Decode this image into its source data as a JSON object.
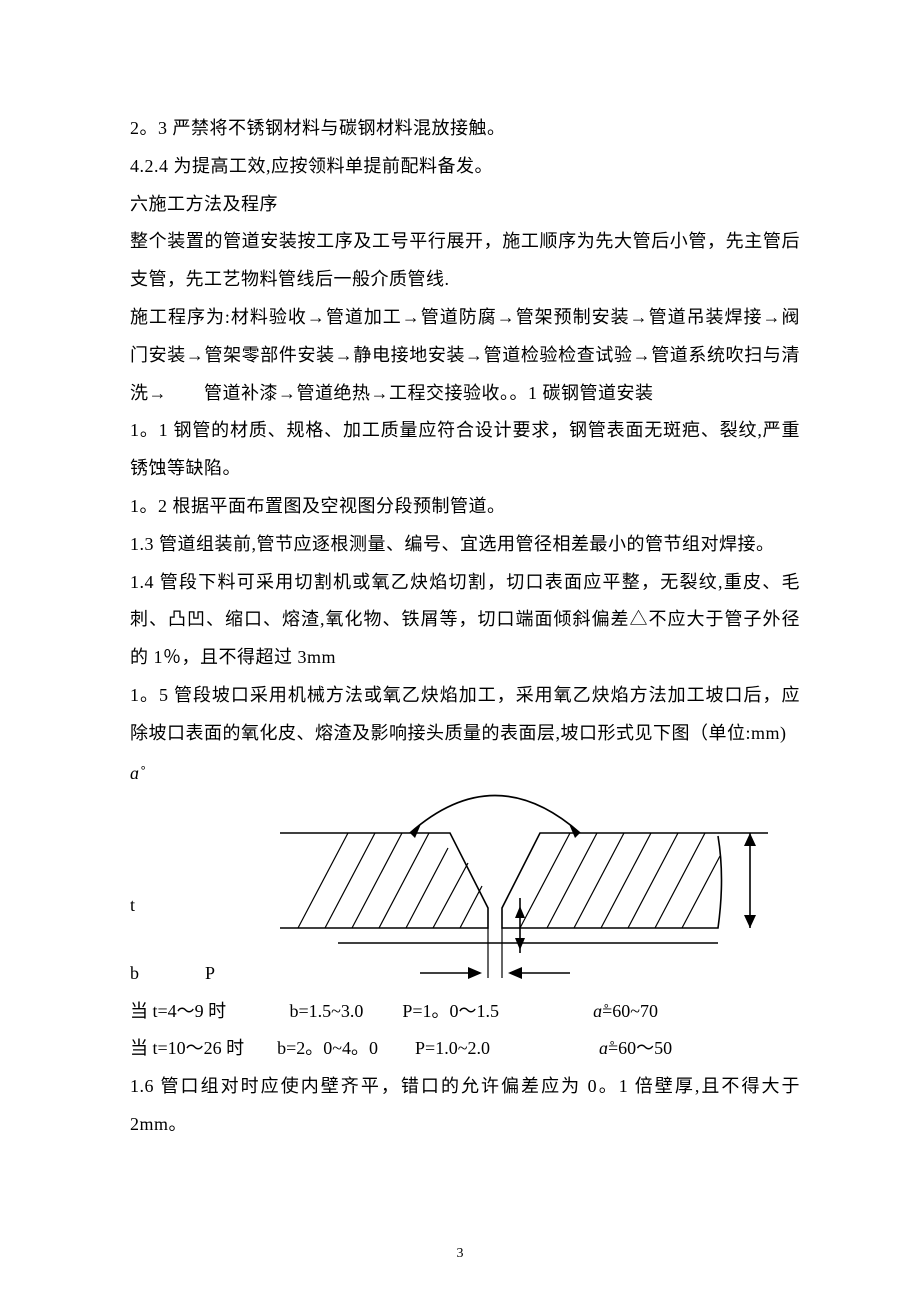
{
  "paragraphs": {
    "p1": "2。3 严禁将不锈钢材料与碳钢材料混放接触。",
    "p2": "4.2.4 为提高工效,应按领料单提前配料备发。",
    "p3": "六施工方法及程序",
    "p4": "整个装置的管道安装按工序及工号平行展开，施工顺序为先大管后小管，先主管后支管，先工艺物料管线后一般介质管线.",
    "p5": "施工程序为:材料验收→管道加工→管道防腐→管架预制安装→管道吊装焊接→阀门安装→管架零部件安装→静电接地安装→管道检验检查试验→管道系统吹扫与清洗→　　管道补漆→管道绝热→工程交接验收。。1 碳钢管道安装",
    "p6": "1。1 钢管的材质、规格、加工质量应符合设计要求，钢管表面无斑疤、裂纹,严重锈蚀等缺陷。",
    "p7": "1。2 根据平面布置图及空视图分段预制管道。",
    "p8": "1.3 管道组装前,管节应逐根测量、编号、宜选用管径相差最小的管节组对焊接。",
    "p9": "1.4 管段下料可采用切割机或氧乙炔焰切割，切口表面应平整，无裂纹,重皮、毛刺、凸凹、缩口、熔渣,氧化物、铁屑等，切口端面倾斜偏差△不应大于管子外径的 1％，且不得超过 3mm",
    "p10": "1。5 管段坡口采用机械方法或氧乙炔焰加工，采用氧乙炔焰方法加工坡口后，应除坡口表面的氧化皮、熔渣及影响接头质量的表面层,坡口形式见下图（单位:mm)"
  },
  "diagram": {
    "alpha_symbol": "ɑ̊",
    "t_label": "t",
    "b_label": "b",
    "p_label": "P",
    "stroke_color": "#000000",
    "stroke_width": 1.6,
    "hatch_width": 1.2
  },
  "conditions": {
    "row1": {
      "c1": "当 t=4～9 时",
      "c2": "b=1.5~3.0",
      "c3": "P=1。0～1.5",
      "c4_pre": "ɑ̊",
      "c4": " =60~70",
      "w1": 155,
      "w2": 125,
      "w3": 170,
      "w4": 0
    },
    "row2": {
      "c1": "当 t=10～26 时",
      "c2": "b=2。0~4。0",
      "c3": "P=1.0~2.0",
      "c4_pre": "ɑ̊",
      "c4": " =60～50",
      "w1": 155,
      "w2": 135,
      "w3": 170,
      "w4": 0
    }
  },
  "p11": "1.6 管口组对时应使内壁齐平，错口的允许偏差应为 0。1 倍壁厚,且不得大于2mm。",
  "page_number": "3"
}
